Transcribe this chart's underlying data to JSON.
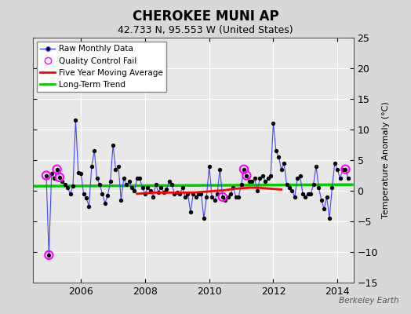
{
  "title": "CHEROKEE MUNI AP",
  "subtitle": "42.733 N, 95.553 W (United States)",
  "ylabel": "Temperature Anomaly (°C)",
  "watermark": "Berkeley Earth",
  "ylim": [
    -15,
    25
  ],
  "yticks": [
    -15,
    -10,
    -5,
    0,
    5,
    10,
    15,
    20,
    25
  ],
  "xlim_start": 2004.5,
  "xlim_end": 2014.5,
  "xticks": [
    2006,
    2008,
    2010,
    2012,
    2014
  ],
  "bg_color": "#d8d8d8",
  "plot_bg_color": "#e8e8e8",
  "raw_line_color": "#4444ff",
  "raw_marker_color": "#000000",
  "qc_color": "#ff00ff",
  "moving_avg_color": "#ff0000",
  "trend_color": "#00cc00",
  "raw_data_x": [
    2004.917,
    2005.0,
    2005.083,
    2005.167,
    2005.25,
    2005.333,
    2005.417,
    2005.5,
    2005.583,
    2005.667,
    2005.75,
    2005.833,
    2005.917,
    2006.0,
    2006.083,
    2006.167,
    2006.25,
    2006.333,
    2006.417,
    2006.5,
    2006.583,
    2006.667,
    2006.75,
    2006.833,
    2006.917,
    2007.0,
    2007.083,
    2007.167,
    2007.25,
    2007.333,
    2007.417,
    2007.5,
    2007.583,
    2007.667,
    2007.75,
    2007.833,
    2007.917,
    2008.0,
    2008.083,
    2008.167,
    2008.25,
    2008.333,
    2008.417,
    2008.5,
    2008.583,
    2008.667,
    2008.75,
    2008.833,
    2008.917,
    2009.0,
    2009.083,
    2009.167,
    2009.25,
    2009.333,
    2009.417,
    2009.5,
    2009.583,
    2009.667,
    2009.75,
    2009.833,
    2009.917,
    2010.0,
    2010.083,
    2010.167,
    2010.25,
    2010.333,
    2010.417,
    2010.5,
    2010.583,
    2010.667,
    2010.75,
    2010.833,
    2010.917,
    2011.0,
    2011.083,
    2011.167,
    2011.25,
    2011.333,
    2011.417,
    2011.5,
    2011.583,
    2011.667,
    2011.75,
    2011.833,
    2011.917,
    2012.0,
    2012.083,
    2012.167,
    2012.25,
    2012.333,
    2012.417,
    2012.5,
    2012.583,
    2012.667,
    2012.75,
    2012.833,
    2012.917,
    2013.0,
    2013.083,
    2013.167,
    2013.25,
    2013.333,
    2013.417,
    2013.5,
    2013.583,
    2013.667,
    2013.75,
    2013.833,
    2013.917,
    2014.0,
    2014.083,
    2014.167,
    2014.25,
    2014.333
  ],
  "raw_data_y": [
    2.5,
    -10.5,
    2.8,
    2.0,
    3.5,
    2.2,
    1.5,
    1.0,
    0.5,
    -0.5,
    0.8,
    11.5,
    3.0,
    2.8,
    -0.5,
    -1.2,
    -2.5,
    4.0,
    6.5,
    2.0,
    1.0,
    -0.5,
    -2.0,
    -0.8,
    1.5,
    7.5,
    3.5,
    4.0,
    -1.5,
    2.0,
    1.0,
    1.5,
    0.5,
    0.0,
    2.0,
    2.0,
    0.5,
    -0.5,
    0.5,
    0.0,
    -1.0,
    1.0,
    -0.2,
    0.5,
    -0.2,
    0.2,
    1.5,
    1.0,
    -0.5,
    -0.3,
    -0.5,
    0.5,
    -1.0,
    -0.5,
    -3.5,
    -0.5,
    -1.0,
    -0.5,
    -0.5,
    -4.5,
    -1.0,
    4.0,
    -1.0,
    -1.5,
    -0.5,
    3.5,
    -1.0,
    -1.5,
    -1.0,
    -0.5,
    0.5,
    -1.0,
    -1.0,
    1.0,
    3.5,
    2.5,
    1.5,
    1.5,
    2.0,
    0.0,
    2.0,
    2.5,
    1.5,
    2.0,
    2.5,
    11.0,
    6.5,
    5.5,
    3.5,
    4.5,
    1.0,
    0.5,
    0.0,
    -1.0,
    2.0,
    2.5,
    -0.5,
    -1.0,
    -0.5,
    -0.5,
    1.0,
    4.0,
    0.5,
    -1.5,
    -3.0,
    -1.0,
    -4.5,
    0.5,
    4.5,
    3.5,
    2.0,
    3.5,
    3.5,
    2.0
  ],
  "qc_fail_x": [
    2004.917,
    2005.0,
    2005.25,
    2005.333,
    2010.417,
    2011.083,
    2011.167,
    2014.25
  ],
  "qc_fail_y": [
    2.5,
    -10.5,
    3.5,
    2.2,
    -1.0,
    3.5,
    2.5,
    3.5
  ],
  "moving_avg_x": [
    2007.75,
    2008.0,
    2008.25,
    2008.5,
    2008.75,
    2009.0,
    2009.25,
    2009.5,
    2009.75,
    2010.0,
    2010.25,
    2010.5,
    2010.75,
    2011.0,
    2011.25,
    2011.5,
    2011.75,
    2012.0,
    2012.25
  ],
  "moving_avg_y": [
    -0.5,
    -0.4,
    -0.3,
    -0.3,
    -0.3,
    -0.3,
    -0.3,
    -0.3,
    -0.2,
    -0.1,
    0.0,
    0.1,
    0.3,
    0.4,
    0.5,
    0.5,
    0.4,
    0.3,
    0.2
  ],
  "trend_x": [
    2004.5,
    2014.5
  ],
  "trend_y": [
    0.75,
    1.0
  ]
}
